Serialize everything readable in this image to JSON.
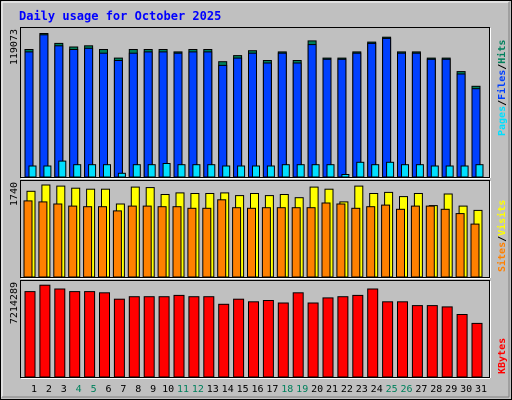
{
  "title": "Daily usage for October 2025",
  "colors": {
    "background": "#c0c0c0",
    "panel": "#c0c0c0",
    "hits": "#00805c",
    "files": "#0040ff",
    "pages": "#00e0ff",
    "visits": "#ffff00",
    "sites": "#ff8000",
    "kbytes": "#ff0000",
    "title": "#0000ff",
    "weekend_label": "#00805c",
    "weekday_label": "#000000"
  },
  "legend": {
    "top": {
      "pages": "Pages",
      "sep1": "/",
      "files": "Files",
      "sep2": "/",
      "hits": "Hits"
    },
    "middle": {
      "sites": "Sites",
      "sep": "/",
      "visits": "Visits"
    },
    "bottom": {
      "kbytes": "KBytes"
    }
  },
  "chart_data": [
    {
      "type": "bar",
      "panel": "hits-files-pages",
      "axis_max_label": "119073",
      "ylim": [
        0,
        119073
      ],
      "categories": [
        "1",
        "2",
        "3",
        "4",
        "5",
        "6",
        "7",
        "8",
        "9",
        "10",
        "11",
        "12",
        "13",
        "14",
        "15",
        "16",
        "17",
        "18",
        "19",
        "20",
        "21",
        "22",
        "23",
        "24",
        "25",
        "26",
        "27",
        "28",
        "29",
        "30",
        "31"
      ],
      "weekend_days": [
        "4",
        "5",
        "11",
        "12",
        "18",
        "19",
        "25",
        "26"
      ],
      "series": [
        {
          "name": "Hits",
          "values": [
            104000,
            117000,
            109000,
            106000,
            107000,
            104000,
            97000,
            104000,
            104000,
            104000,
            102000,
            104000,
            104000,
            94000,
            99000,
            103000,
            95000,
            102000,
            95000,
            111000,
            97000,
            97000,
            102000,
            110000,
            114000,
            102000,
            102000,
            97000,
            97000,
            86000,
            74000
          ]
        },
        {
          "name": "Files",
          "values": [
            102000,
            116000,
            107000,
            104000,
            105000,
            101000,
            95000,
            101000,
            102000,
            102000,
            101000,
            102000,
            102000,
            91000,
            97000,
            101000,
            93000,
            101000,
            93000,
            108000,
            96000,
            96000,
            101000,
            109000,
            113000,
            101000,
            101000,
            96000,
            96000,
            84000,
            72000
          ]
        },
        {
          "name": "Pages",
          "values": [
            9000,
            9000,
            13000,
            10000,
            10000,
            10000,
            3000,
            10000,
            10000,
            11000,
            10000,
            10000,
            10000,
            9000,
            9000,
            9000,
            9000,
            10000,
            10000,
            10000,
            10000,
            2000,
            12000,
            10000,
            12000,
            10000,
            10000,
            9000,
            9000,
            9000,
            10000
          ]
        }
      ]
    },
    {
      "type": "bar",
      "panel": "visits-sites",
      "axis_max_label": "1740",
      "ylim": [
        0,
        1740
      ],
      "categories": [
        "1",
        "2",
        "3",
        "4",
        "5",
        "6",
        "7",
        "8",
        "9",
        "10",
        "11",
        "12",
        "13",
        "14",
        "15",
        "16",
        "17",
        "18",
        "19",
        "20",
        "21",
        "22",
        "23",
        "24",
        "25",
        "26",
        "27",
        "28",
        "29",
        "30",
        "31"
      ],
      "series": [
        {
          "name": "Visits",
          "values": [
            1620,
            1740,
            1720,
            1680,
            1660,
            1660,
            1380,
            1700,
            1690,
            1560,
            1590,
            1580,
            1580,
            1590,
            1540,
            1580,
            1540,
            1560,
            1500,
            1700,
            1660,
            1420,
            1720,
            1580,
            1600,
            1520,
            1580,
            1350,
            1570,
            1340,
            1260
          ]
        },
        {
          "name": "Sites",
          "values": [
            1440,
            1420,
            1380,
            1340,
            1330,
            1330,
            1250,
            1340,
            1340,
            1330,
            1330,
            1300,
            1300,
            1460,
            1310,
            1300,
            1310,
            1310,
            1310,
            1310,
            1400,
            1380,
            1300,
            1330,
            1360,
            1280,
            1340,
            1340,
            1280,
            1200,
            1000
          ]
        }
      ]
    },
    {
      "type": "bar",
      "panel": "kbytes",
      "axis_max_label": "7214289",
      "ylim": [
        0,
        7214289
      ],
      "categories": [
        "1",
        "2",
        "3",
        "4",
        "5",
        "6",
        "7",
        "8",
        "9",
        "10",
        "11",
        "12",
        "13",
        "14",
        "15",
        "16",
        "17",
        "18",
        "19",
        "20",
        "21",
        "22",
        "23",
        "24",
        "25",
        "26",
        "27",
        "28",
        "29",
        "30",
        "31"
      ],
      "series": [
        {
          "name": "KBytes",
          "values": [
            6700000,
            7200000,
            6900000,
            6700000,
            6700000,
            6600000,
            6100000,
            6300000,
            6300000,
            6300000,
            6400000,
            6300000,
            6300000,
            5700000,
            6100000,
            5900000,
            6000000,
            5800000,
            6600000,
            5800000,
            6200000,
            6300000,
            6400000,
            6900000,
            5900000,
            5900000,
            5600000,
            5600000,
            5500000,
            4900000,
            4200000
          ]
        }
      ]
    }
  ]
}
